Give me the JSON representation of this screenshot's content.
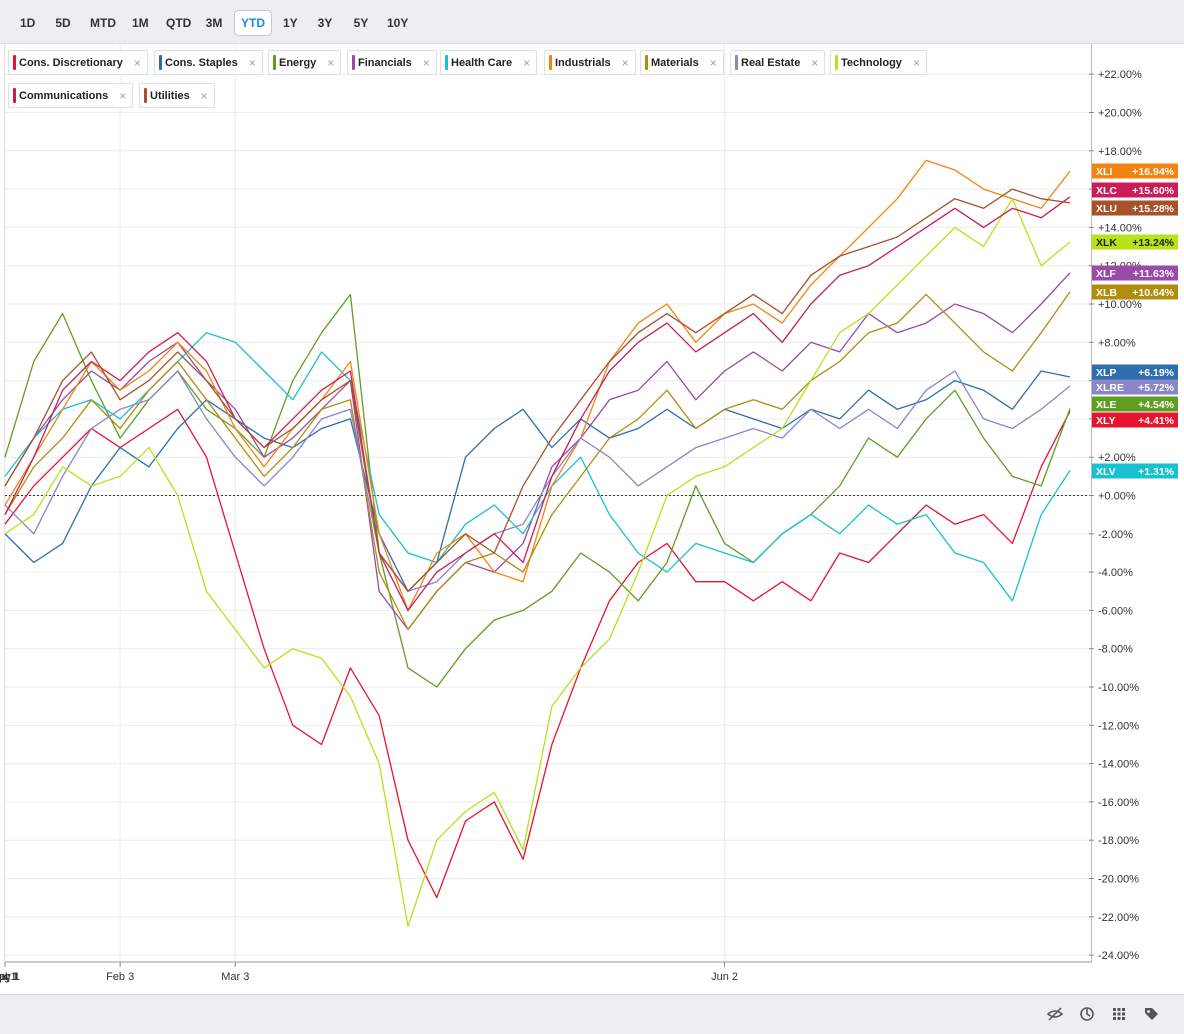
{
  "ranges": [
    {
      "label": "1D",
      "active": false
    },
    {
      "label": "5D",
      "active": false
    },
    {
      "label": "MTD",
      "active": false
    },
    {
      "label": "1M",
      "active": false
    },
    {
      "label": "QTD",
      "active": false
    },
    {
      "label": "3M",
      "active": false
    },
    {
      "label": "YTD",
      "active": true
    },
    {
      "label": "1Y",
      "active": false
    },
    {
      "label": "3Y",
      "active": false
    },
    {
      "label": "5Y",
      "active": false
    },
    {
      "label": "10Y",
      "active": false
    }
  ],
  "legend": [
    {
      "label": "Cons. Discretionary",
      "color": "#e8132f"
    },
    {
      "label": "Cons. Staples",
      "color": "#2c6fac"
    },
    {
      "label": "Energy",
      "color": "#5f9e23"
    },
    {
      "label": "Financials",
      "color": "#9a4aa8"
    },
    {
      "label": "Health Care",
      "color": "#18c1cf"
    },
    {
      "label": "Industrials",
      "color": "#f2840f"
    },
    {
      "label": "Materials",
      "color": "#b18c0d"
    },
    {
      "label": "Real Estate",
      "color": "#8a86c8"
    },
    {
      "label": "Technology",
      "color": "#b7e21a"
    },
    {
      "label": "Communications",
      "color": "#c91d5a"
    },
    {
      "label": "Utilities",
      "color": "#a6522b"
    }
  ],
  "chart_data": {
    "type": "line",
    "x_ticks": [
      "Feb 3",
      "Mar 3",
      "Apr 1",
      "May 1",
      "Jun 2",
      "Jul 1",
      "Aug 1"
    ],
    "y_ticks": [
      "+22.00%",
      "+20.00%",
      "+18.00%",
      "+16.00%",
      "+14.00%",
      "+12.00%",
      "+10.00%",
      "+8.00%",
      "+6.00%",
      "+4.00%",
      "+2.00%",
      "+0.00%",
      "-2.00%",
      "-4.00%",
      "-6.00%",
      "-8.00%",
      "-10.00%",
      "-12.00%",
      "-14.00%",
      "-16.00%",
      "-18.00%",
      "-20.00%",
      "-22.00%",
      "-24.00%"
    ],
    "ylim": [
      -24.5,
      23
    ],
    "x_dates": [
      "Jan 6",
      "Jan 13",
      "Jan 21",
      "Jan 27",
      "Feb 3",
      "Feb 10",
      "Feb 18",
      "Feb 24",
      "Mar 3",
      "Mar 10",
      "Mar 17",
      "Mar 24",
      "Mar 31",
      "Apr 2",
      "Apr 4",
      "Apr 7",
      "Apr 9",
      "Apr 11",
      "Apr 17",
      "Apr 21",
      "Apr 28",
      "May 5",
      "May 12",
      "May 19",
      "May 27",
      "Jun 2",
      "Jun 9",
      "Jun 16",
      "Jun 23",
      "Jun 30",
      "Jul 7",
      "Jul 14",
      "Jul 21",
      "Jul 28",
      "Aug 4",
      "Aug 11",
      "Aug 18",
      "Aug 22"
    ],
    "zero_line": true,
    "series": [
      {
        "name": "Cons. Discretionary",
        "tag": "XLY",
        "last": "+4.41%",
        "color": "#e8132f",
        "values": [
          -1.5,
          0.5,
          2.0,
          3.5,
          2.5,
          3.5,
          4.5,
          2.0,
          -3.0,
          -8.0,
          -12.0,
          -13.0,
          -9.0,
          -11.5,
          -18.0,
          -21.0,
          -17.0,
          -16.0,
          -19.0,
          -13.0,
          -9.0,
          -5.5,
          -3.5,
          -2.5,
          -4.5,
          -4.5,
          -5.5,
          -4.5,
          -5.5,
          -3.0,
          -3.5,
          -2.0,
          -0.5,
          -1.5,
          -1.0,
          -2.5,
          1.5,
          4.4
        ]
      },
      {
        "name": "Cons. Staples",
        "tag": "XLP",
        "last": "+6.19%",
        "color": "#2c6fac",
        "values": [
          -2.0,
          -3.5,
          -2.5,
          0.5,
          2.5,
          1.5,
          3.5,
          5.0,
          4.0,
          3.0,
          2.5,
          3.5,
          4.0,
          -2.0,
          -5.0,
          -3.5,
          2.0,
          3.5,
          4.5,
          2.5,
          4.0,
          3.0,
          3.5,
          4.5,
          3.5,
          4.5,
          4.0,
          3.5,
          4.5,
          4.0,
          5.5,
          4.5,
          5.0,
          6.0,
          5.5,
          4.5,
          6.5,
          6.19
        ]
      },
      {
        "name": "Energy",
        "tag": "XLE",
        "last": "+4.54%",
        "color": "#5f9e23",
        "values": [
          2.0,
          7.0,
          9.5,
          6.0,
          3.0,
          5.0,
          6.5,
          4.5,
          3.5,
          2.0,
          6.0,
          8.5,
          10.5,
          -3.0,
          -9.0,
          -10.0,
          -8.0,
          -6.5,
          -6.0,
          -5.0,
          -3.0,
          -4.0,
          -5.5,
          -3.5,
          0.5,
          -2.5,
          -3.5,
          -2.0,
          -1.0,
          0.5,
          3.0,
          2.0,
          4.0,
          5.5,
          3.0,
          1.0,
          0.5,
          4.54
        ]
      },
      {
        "name": "Financials",
        "tag": "XLF",
        "last": "+11.63%",
        "color": "#9a4aa8",
        "values": [
          0.5,
          3.0,
          5.0,
          6.5,
          5.5,
          7.0,
          8.0,
          6.0,
          4.5,
          2.0,
          3.0,
          4.5,
          6.0,
          -5.0,
          -7.0,
          -5.0,
          -3.5,
          -4.0,
          -2.5,
          1.5,
          3.0,
          5.0,
          5.5,
          7.0,
          5.0,
          6.5,
          7.5,
          6.5,
          8.0,
          7.5,
          9.5,
          8.5,
          9.0,
          10.0,
          9.5,
          8.5,
          10.0,
          11.63
        ]
      },
      {
        "name": "Health Care",
        "tag": "XLV",
        "last": "+1.31%",
        "color": "#18c1cf",
        "values": [
          1.0,
          3.0,
          4.5,
          5.0,
          4.0,
          5.5,
          7.0,
          8.5,
          8.0,
          6.5,
          5.0,
          7.5,
          6.0,
          -1.0,
          -3.0,
          -3.5,
          -1.5,
          -0.5,
          -2.0,
          0.5,
          2.0,
          -1.0,
          -3.0,
          -4.0,
          -2.5,
          -3.0,
          -3.5,
          -2.0,
          -1.0,
          -2.0,
          -0.5,
          -1.5,
          -1.0,
          -3.0,
          -3.5,
          -5.5,
          -1.0,
          1.31
        ]
      },
      {
        "name": "Industrials",
        "tag": "XLI",
        "last": "+16.94%",
        "color": "#f2840f",
        "values": [
          -0.5,
          2.0,
          4.5,
          7.0,
          5.5,
          6.5,
          8.0,
          6.5,
          3.5,
          1.5,
          3.5,
          5.0,
          7.0,
          -2.0,
          -6.0,
          -3.0,
          -2.0,
          -4.0,
          -4.5,
          0.5,
          3.0,
          7.0,
          9.0,
          10.0,
          8.0,
          9.5,
          10.0,
          9.0,
          11.0,
          12.5,
          14.0,
          15.5,
          17.5,
          17.0,
          16.0,
          15.5,
          15.0,
          16.94
        ]
      },
      {
        "name": "Materials",
        "tag": "XLB",
        "last": "+10.64%",
        "color": "#b18c0d",
        "values": [
          -1.0,
          1.5,
          3.0,
          5.0,
          3.5,
          5.5,
          7.0,
          5.0,
          3.0,
          1.0,
          2.5,
          4.5,
          5.0,
          -4.0,
          -7.0,
          -5.0,
          -3.5,
          -3.0,
          -4.0,
          -1.0,
          1.0,
          3.0,
          4.0,
          5.5,
          3.5,
          4.5,
          5.0,
          4.5,
          6.0,
          7.0,
          8.5,
          9.0,
          10.5,
          9.0,
          7.5,
          6.5,
          8.5,
          10.64
        ]
      },
      {
        "name": "Real Estate",
        "tag": "XLRE",
        "last": "+5.72%",
        "color": "#8a86c8",
        "values": [
          -0.5,
          -2.0,
          1.0,
          3.5,
          4.5,
          5.0,
          6.5,
          4.0,
          2.0,
          0.5,
          2.0,
          4.0,
          4.5,
          -3.0,
          -5.0,
          -4.5,
          -3.0,
          -2.0,
          -1.5,
          1.0,
          3.0,
          2.0,
          0.5,
          1.5,
          2.5,
          3.0,
          3.5,
          3.0,
          4.5,
          3.5,
          4.5,
          3.5,
          5.5,
          6.5,
          4.0,
          3.5,
          4.5,
          5.72
        ]
      },
      {
        "name": "Technology",
        "tag": "XLK",
        "last": "+13.24%",
        "color": "#b7e21a",
        "values": [
          -2.0,
          -1.0,
          1.5,
          0.5,
          1.0,
          2.5,
          0.0,
          -5.0,
          -7.0,
          -9.0,
          -8.0,
          -8.5,
          -10.5,
          -14.0,
          -22.5,
          -18.0,
          -16.5,
          -15.5,
          -18.5,
          -11.0,
          -9.0,
          -7.5,
          -4.0,
          0.0,
          1.0,
          1.5,
          2.5,
          3.5,
          6.0,
          8.5,
          9.5,
          11.0,
          12.5,
          14.0,
          13.0,
          15.5,
          12.0,
          13.24
        ]
      },
      {
        "name": "Communications",
        "tag": "XLC",
        "last": "+15.60%",
        "color": "#c91d5a",
        "values": [
          -1.0,
          2.0,
          5.5,
          7.0,
          6.0,
          7.5,
          8.5,
          7.0,
          4.0,
          2.5,
          4.0,
          5.5,
          6.5,
          -3.0,
          -6.0,
          -4.0,
          -3.0,
          -2.0,
          -3.5,
          1.0,
          4.0,
          6.5,
          8.0,
          9.0,
          7.5,
          8.5,
          9.5,
          8.0,
          10.0,
          11.5,
          12.0,
          13.0,
          14.0,
          15.0,
          14.0,
          15.0,
          14.5,
          15.6
        ]
      },
      {
        "name": "Utilities",
        "tag": "XLU",
        "last": "+15.28%",
        "color": "#a6522b",
        "values": [
          0.5,
          3.0,
          6.0,
          7.5,
          5.0,
          6.0,
          7.5,
          6.0,
          4.0,
          2.5,
          3.5,
          5.0,
          6.0,
          -3.0,
          -5.0,
          -3.5,
          -2.0,
          -3.0,
          0.5,
          3.0,
          5.0,
          7.0,
          8.5,
          9.5,
          8.5,
          9.5,
          10.5,
          9.5,
          11.5,
          12.5,
          13.0,
          13.5,
          14.5,
          15.5,
          15.0,
          16.0,
          15.5,
          15.28
        ]
      }
    ]
  },
  "labels_order": [
    "XLI",
    "XLC",
    "XLU",
    "XLK",
    "XLF",
    "XLB",
    "XLP",
    "XLRE",
    "XLE",
    "XLY",
    "XLV"
  ],
  "toolbar_icons": [
    "hide-lines-icon",
    "reset-zoom-icon",
    "grid-icon",
    "tag-icon"
  ]
}
